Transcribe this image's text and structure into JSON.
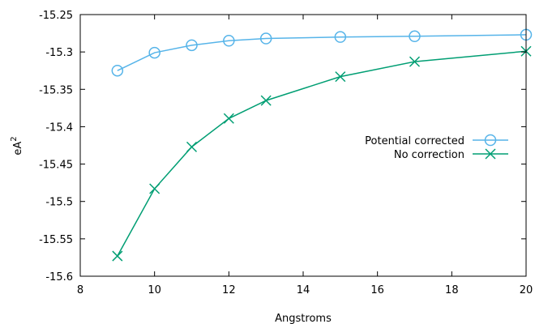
{
  "chart_data": {
    "type": "line",
    "title": "",
    "xlabel": "Angstroms",
    "ylabel_base": "eA",
    "ylabel_sup": "2",
    "xlim": [
      8,
      20
    ],
    "ylim": [
      -15.6,
      -15.25
    ],
    "xticks": [
      8,
      10,
      12,
      14,
      16,
      18,
      20
    ],
    "xtick_labels": [
      "8",
      "10",
      "12",
      "14",
      "16",
      "18",
      "20"
    ],
    "yticks": [
      -15.6,
      -15.55,
      -15.5,
      -15.45,
      -15.4,
      -15.35,
      -15.3,
      -15.25
    ],
    "ytick_labels": [
      "-15.6",
      "-15.55",
      "-15.5",
      "-15.45",
      "-15.4",
      "-15.35",
      "-15.3",
      "-15.25"
    ],
    "grid": false,
    "legend_position": "center-right",
    "series": [
      {
        "name": "Potential corrected",
        "color": "#56b4e9",
        "marker": "circle",
        "x": [
          9,
          10,
          11,
          12,
          13,
          15,
          17,
          20
        ],
        "y": [
          -15.325,
          -15.301,
          -15.291,
          -15.285,
          -15.282,
          -15.28,
          -15.279,
          -15.277
        ]
      },
      {
        "name": "No correction",
        "color": "#009e73",
        "marker": "x",
        "x": [
          9,
          10,
          11,
          12,
          13,
          15,
          17,
          20
        ],
        "y": [
          -15.573,
          -15.483,
          -15.427,
          -15.389,
          -15.365,
          -15.333,
          -15.313,
          -15.299
        ]
      }
    ]
  }
}
